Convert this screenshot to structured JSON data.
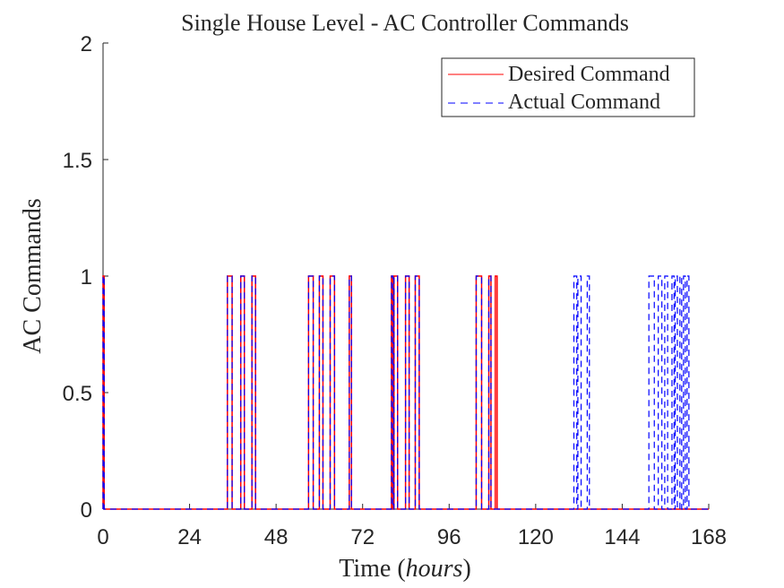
{
  "chart_data": {
    "type": "line",
    "title": "Single House Level - AC Controller Commands",
    "xlabel": "Time",
    "xlabel_unit": "hours",
    "ylabel": "AC Commands",
    "xlim": [
      0,
      168
    ],
    "ylim": [
      0,
      2
    ],
    "xticks": [
      0,
      24,
      48,
      72,
      96,
      120,
      144,
      168
    ],
    "yticks": [
      0,
      0.5,
      1,
      1.5,
      2
    ],
    "ytick_labels": [
      "0",
      "0.5",
      "1",
      "1.5",
      "2"
    ],
    "grid": false,
    "legend_position": "top-right",
    "series": [
      {
        "name": "Desired Command",
        "color": "#ff0000",
        "style": "solid",
        "on_intervals": [
          [
            0,
            0.3
          ],
          [
            34.5,
            35.8
          ],
          [
            38.2,
            39.2
          ],
          [
            41.3,
            42.3
          ],
          [
            57,
            58.3
          ],
          [
            60,
            61
          ],
          [
            63,
            64.2
          ],
          [
            68.3,
            68.9
          ],
          [
            80,
            80.4
          ],
          [
            80.7,
            81.7
          ],
          [
            83.9,
            84.9
          ],
          [
            86.6,
            87.7
          ],
          [
            103.5,
            105
          ],
          [
            107,
            107.6
          ],
          [
            108.8,
            109.3
          ]
        ]
      },
      {
        "name": "Actual Command",
        "color": "#0000ff",
        "style": "dashed",
        "on_intervals": [
          [
            0,
            0.3
          ],
          [
            34.5,
            35.8
          ],
          [
            38.2,
            39.2
          ],
          [
            41.3,
            42.3
          ],
          [
            57,
            58.3
          ],
          [
            60,
            61
          ],
          [
            63,
            64.2
          ],
          [
            68.3,
            68.9
          ],
          [
            80,
            80.4
          ],
          [
            80.7,
            81.7
          ],
          [
            83.9,
            84.9
          ],
          [
            86.6,
            87.7
          ],
          [
            103.5,
            105
          ],
          [
            107,
            107.6
          ],
          [
            130.6,
            131.4
          ],
          [
            131.7,
            132.6
          ],
          [
            134.3,
            134.9
          ],
          [
            151.4,
            152.9
          ],
          [
            154,
            155
          ],
          [
            155.8,
            156.6
          ],
          [
            157.8,
            158.4
          ],
          [
            158.7,
            159.3
          ],
          [
            160,
            160.5
          ],
          [
            161,
            161.5
          ],
          [
            162,
            162.5
          ]
        ]
      }
    ]
  }
}
